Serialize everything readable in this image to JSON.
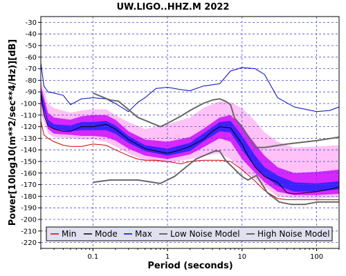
{
  "chart_data": {
    "type": "line",
    "title": "UW.LIGO..HHZ.M 2022",
    "xlabel": "Period (seconds)",
    "ylabel": "Power[10log10(m**2/sec**4/Hz)][dB]",
    "xscale": "log",
    "xlim": [
      0.02,
      200
    ],
    "ylim": [
      -225,
      -25
    ],
    "x_ticks": [
      {
        "value": 0.1,
        "label": "0.1"
      },
      {
        "value": 1,
        "label": "1"
      },
      {
        "value": 10,
        "label": "10"
      },
      {
        "value": 100,
        "label": "100"
      }
    ],
    "y_ticks": [
      -30,
      -40,
      -50,
      -60,
      -70,
      -80,
      -90,
      -100,
      -110,
      -120,
      -130,
      -140,
      -150,
      -160,
      -170,
      -180,
      -190,
      -200,
      -210,
      -220
    ],
    "grid": true,
    "legend_position": "bottom",
    "colors": {
      "min": "#cc0000",
      "mode": "#000000",
      "max": "#0000cc",
      "low_noise_model": "#666666",
      "high_noise_model": "#666666",
      "grid": "#4444cc",
      "legend_bg": "#e0e0f0",
      "density_low": "#ffb6f6",
      "density_mid": "#cc00ff",
      "density_high": "#2222ff",
      "density_peak": "#00dd66"
    },
    "series": [
      {
        "name": "Min",
        "key": "min",
        "x": [
          0.02,
          0.022,
          0.025,
          0.03,
          0.04,
          0.05,
          0.07,
          0.1,
          0.15,
          0.2,
          0.3,
          0.4,
          0.5,
          0.7,
          1,
          1.5,
          2,
          3,
          5,
          7,
          10,
          15,
          20,
          30,
          40,
          60,
          100,
          150,
          200
        ],
        "y": [
          -115,
          -127,
          -130,
          -133,
          -136,
          -137,
          -137,
          -135,
          -136,
          -140,
          -145,
          -148,
          -149,
          -149,
          -150,
          -152,
          -150,
          -149,
          -149,
          -150,
          -157,
          -167,
          -175,
          -182,
          -183,
          -183,
          -183,
          -183,
          -183
        ]
      },
      {
        "name": "Mode",
        "key": "mode",
        "x": [
          0.02,
          0.022,
          0.025,
          0.03,
          0.04,
          0.05,
          0.07,
          0.1,
          0.15,
          0.2,
          0.3,
          0.5,
          0.7,
          1,
          1.5,
          2,
          3,
          4,
          5,
          7,
          10,
          12,
          15,
          20,
          30,
          40,
          50,
          100,
          150,
          200
        ],
        "y": [
          -90,
          -110,
          -119,
          -122,
          -124,
          -124,
          -120,
          -120,
          -118,
          -122,
          -131,
          -139,
          -141,
          -143,
          -140,
          -137,
          -131,
          -124,
          -120,
          -121,
          -135,
          -145,
          -155,
          -163,
          -168,
          -177,
          -178,
          -176,
          -174,
          -172
        ]
      },
      {
        "name": "Max",
        "key": "max",
        "x": [
          0.02,
          0.022,
          0.025,
          0.03,
          0.04,
          0.05,
          0.07,
          0.1,
          0.15,
          0.2,
          0.3,
          0.4,
          0.5,
          0.7,
          1,
          1.5,
          2,
          3,
          5,
          7,
          10,
          15,
          20,
          30,
          50,
          100,
          150,
          200
        ],
        "y": [
          -65,
          -85,
          -90,
          -91,
          -93,
          -101,
          -96,
          -95,
          -96,
          -100,
          -107,
          -99,
          -95,
          -87,
          -86,
          -88,
          -89,
          -85,
          -83,
          -72,
          -69,
          -70,
          -75,
          -95,
          -103,
          -107,
          -106,
          -103
        ]
      },
      {
        "name": "Low Noise Model",
        "key": "low_noise_model",
        "x": [
          0.1,
          0.17,
          0.4,
          0.8,
          1.24,
          2.4,
          4.3,
          5,
          6,
          10,
          12,
          15.6,
          21.9,
          31.6,
          45,
          70,
          101,
          154,
          200
        ],
        "y": [
          -168,
          -166,
          -166,
          -169,
          -163,
          -148,
          -141,
          -141,
          -149,
          -163,
          -166,
          -162,
          -177,
          -185,
          -187,
          -187,
          -185,
          -185,
          -185
        ]
      },
      {
        "name": "High Noise Model",
        "key": "high_noise_model",
        "x": [
          0.1,
          0.17,
          0.22,
          0.4,
          0.8,
          1,
          1.5,
          2,
          3,
          4,
          5,
          6,
          7,
          8,
          10,
          15,
          20,
          40,
          100,
          200
        ],
        "y": [
          -91,
          -97,
          -98,
          -112,
          -120,
          -117,
          -111,
          -106,
          -100,
          -97,
          -96,
          -98,
          -101,
          -113,
          -120,
          -138,
          -138,
          -135,
          -132,
          -129
        ]
      }
    ],
    "density_bands": [
      {
        "level": "low",
        "x": [
          0.02,
          0.025,
          0.03,
          0.05,
          0.07,
          0.1,
          0.15,
          0.2,
          0.3,
          0.5,
          1,
          2,
          3,
          5,
          7,
          10,
          15,
          20,
          30,
          50,
          100,
          200
        ],
        "upper": [
          -80,
          -100,
          -104,
          -108,
          -106,
          -105,
          -105,
          -110,
          -116,
          -122,
          -118,
          -112,
          -104,
          -98,
          -99,
          -104,
          -115,
          -125,
          -133,
          -138,
          -137,
          -136
        ],
        "lower": [
          -108,
          -126,
          -129,
          -130,
          -131,
          -131,
          -133,
          -137,
          -143,
          -149,
          -151,
          -148,
          -145,
          -143,
          -148,
          -157,
          -165,
          -172,
          -180,
          -182,
          -182,
          -181
        ]
      },
      {
        "level": "mid",
        "x": [
          0.02,
          0.025,
          0.03,
          0.05,
          0.07,
          0.1,
          0.15,
          0.2,
          0.3,
          0.5,
          1,
          2,
          3,
          5,
          7,
          10,
          15,
          20,
          30,
          50,
          100,
          200
        ],
        "upper": [
          -85,
          -108,
          -112,
          -114,
          -111,
          -110,
          -110,
          -114,
          -124,
          -131,
          -133,
          -129,
          -122,
          -112,
          -110,
          -120,
          -135,
          -145,
          -155,
          -160,
          -159,
          -157
        ],
        "lower": [
          -100,
          -122,
          -126,
          -127,
          -128,
          -128,
          -129,
          -132,
          -139,
          -145,
          -148,
          -144,
          -138,
          -130,
          -133,
          -148,
          -160,
          -168,
          -176,
          -179,
          -179,
          -178
        ]
      },
      {
        "level": "high",
        "x": [
          0.02,
          0.025,
          0.03,
          0.05,
          0.07,
          0.1,
          0.15,
          0.2,
          0.3,
          0.5,
          1,
          2,
          3,
          5,
          7,
          10,
          15,
          20,
          30,
          50,
          100,
          200
        ],
        "upper": [
          -88,
          -114,
          -118,
          -119,
          -116,
          -116,
          -115,
          -119,
          -128,
          -136,
          -139,
          -134,
          -126,
          -116,
          -115,
          -128,
          -145,
          -155,
          -162,
          -168,
          -169,
          -167
        ],
        "lower": [
          -96,
          -118,
          -122,
          -124,
          -123,
          -123,
          -123,
          -126,
          -134,
          -141,
          -145,
          -141,
          -133,
          -124,
          -125,
          -140,
          -155,
          -163,
          -171,
          -176,
          -176,
          -174
        ]
      }
    ],
    "legend": [
      {
        "label": "Min",
        "key": "min"
      },
      {
        "label": "Mode",
        "key": "mode"
      },
      {
        "label": "Max",
        "key": "max"
      },
      {
        "label": "Low Noise Model",
        "key": "low_noise_model"
      },
      {
        "label": "High Noise Model",
        "key": "high_noise_model"
      }
    ]
  }
}
